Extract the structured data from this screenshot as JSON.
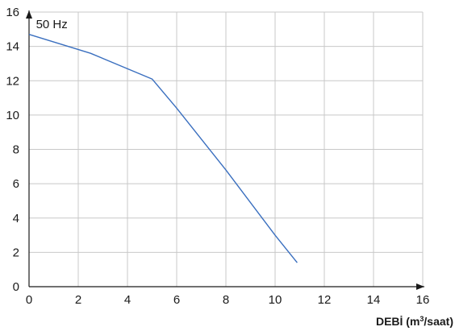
{
  "chart_data": {
    "type": "line",
    "xlabel_text": "DEBİ (m",
    "xlabel_sup": "3",
    "xlabel_tail": "/saat)",
    "ylabel": "",
    "xlim": [
      0,
      16
    ],
    "ylim": [
      0,
      16
    ],
    "xticks": [
      0,
      2,
      4,
      6,
      8,
      10,
      12,
      14,
      16
    ],
    "yticks": [
      0,
      2,
      4,
      6,
      8,
      10,
      12,
      14,
      16
    ],
    "grid": true,
    "annotations": [
      {
        "text": "50 Hz",
        "x": 0.15,
        "y": 15.3
      }
    ],
    "series": [
      {
        "color": "#3a6fbf",
        "x": [
          0,
          2.5,
          5.0,
          6.0,
          8.0,
          10.0,
          10.9
        ],
        "y": [
          14.7,
          13.6,
          12.1,
          10.4,
          6.8,
          3.0,
          1.4
        ]
      }
    ],
    "colors": {
      "grid": "#c8c8c8",
      "axis": "#1a1a1a",
      "line": "#3a6fbf"
    }
  }
}
